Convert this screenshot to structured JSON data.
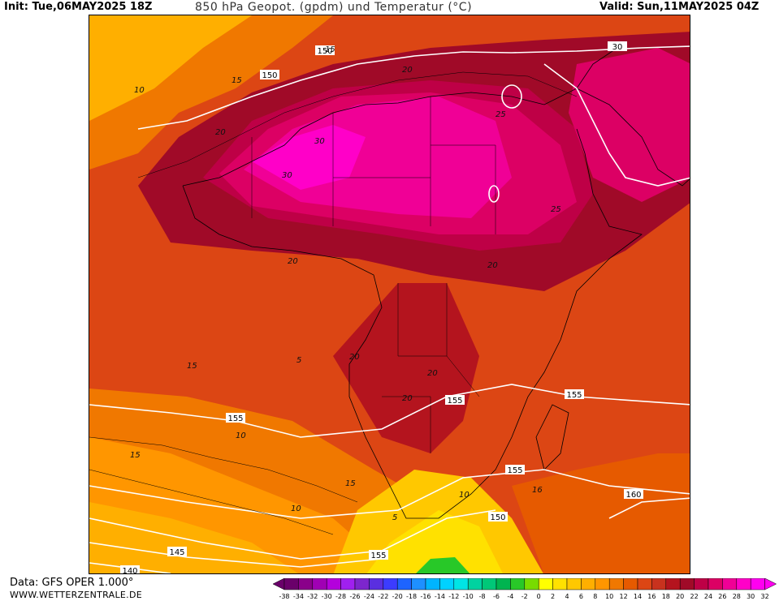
{
  "header": {
    "init": "Init: Tue,06MAY2025 18Z",
    "title": "850 hPa Geopot. (gpdm) und Temperatur (°C)",
    "valid": "Valid: Sun,11MAY2025 04Z"
  },
  "footer": {
    "data_source": "Data: GFS OPER 1.000°",
    "website": "WWW.WETTERZENTRALE.DE"
  },
  "colorbar": {
    "ticks": [
      "-38",
      "-34",
      "-32",
      "-30",
      "-28",
      "-26",
      "-24",
      "-22",
      "-20",
      "-18",
      "-16",
      "-14",
      "-12",
      "-10",
      "-8",
      "-6",
      "-4",
      "-2",
      "0",
      "2",
      "4",
      "6",
      "8",
      "10",
      "12",
      "14",
      "16",
      "18",
      "20",
      "22",
      "24",
      "26",
      "28",
      "30",
      "32"
    ],
    "colors": [
      "#6a006a",
      "#8a008a",
      "#a000b4",
      "#b400dc",
      "#a020f0",
      "#7d26cd",
      "#5a2fe0",
      "#3c3cff",
      "#1e64ff",
      "#1e90ff",
      "#00b4ff",
      "#00d2ff",
      "#00e5e5",
      "#00d2a0",
      "#00c878",
      "#00b450",
      "#28c828",
      "#78dc00",
      "#ffff00",
      "#ffe100",
      "#ffc800",
      "#ffaf00",
      "#ff9600",
      "#f07800",
      "#e65a00",
      "#dc4614",
      "#c8321e",
      "#b4141e",
      "#a00a28",
      "#be0046",
      "#dc0064",
      "#f00096",
      "#ff00c8",
      "#ff00f0"
    ]
  },
  "map": {
    "geopotential_labels": [
      "150",
      "150",
      "30",
      "155",
      "155",
      "155",
      "155",
      "155",
      "160",
      "150",
      "145",
      "140"
    ],
    "temperature_labels": [
      "10",
      "15",
      "15",
      "20",
      "20",
      "25",
      "25",
      "30",
      "30",
      "20",
      "20",
      "20",
      "20",
      "15",
      "15",
      "10",
      "10",
      "15",
      "10",
      "5",
      "16",
      "5",
      "20"
    ]
  }
}
